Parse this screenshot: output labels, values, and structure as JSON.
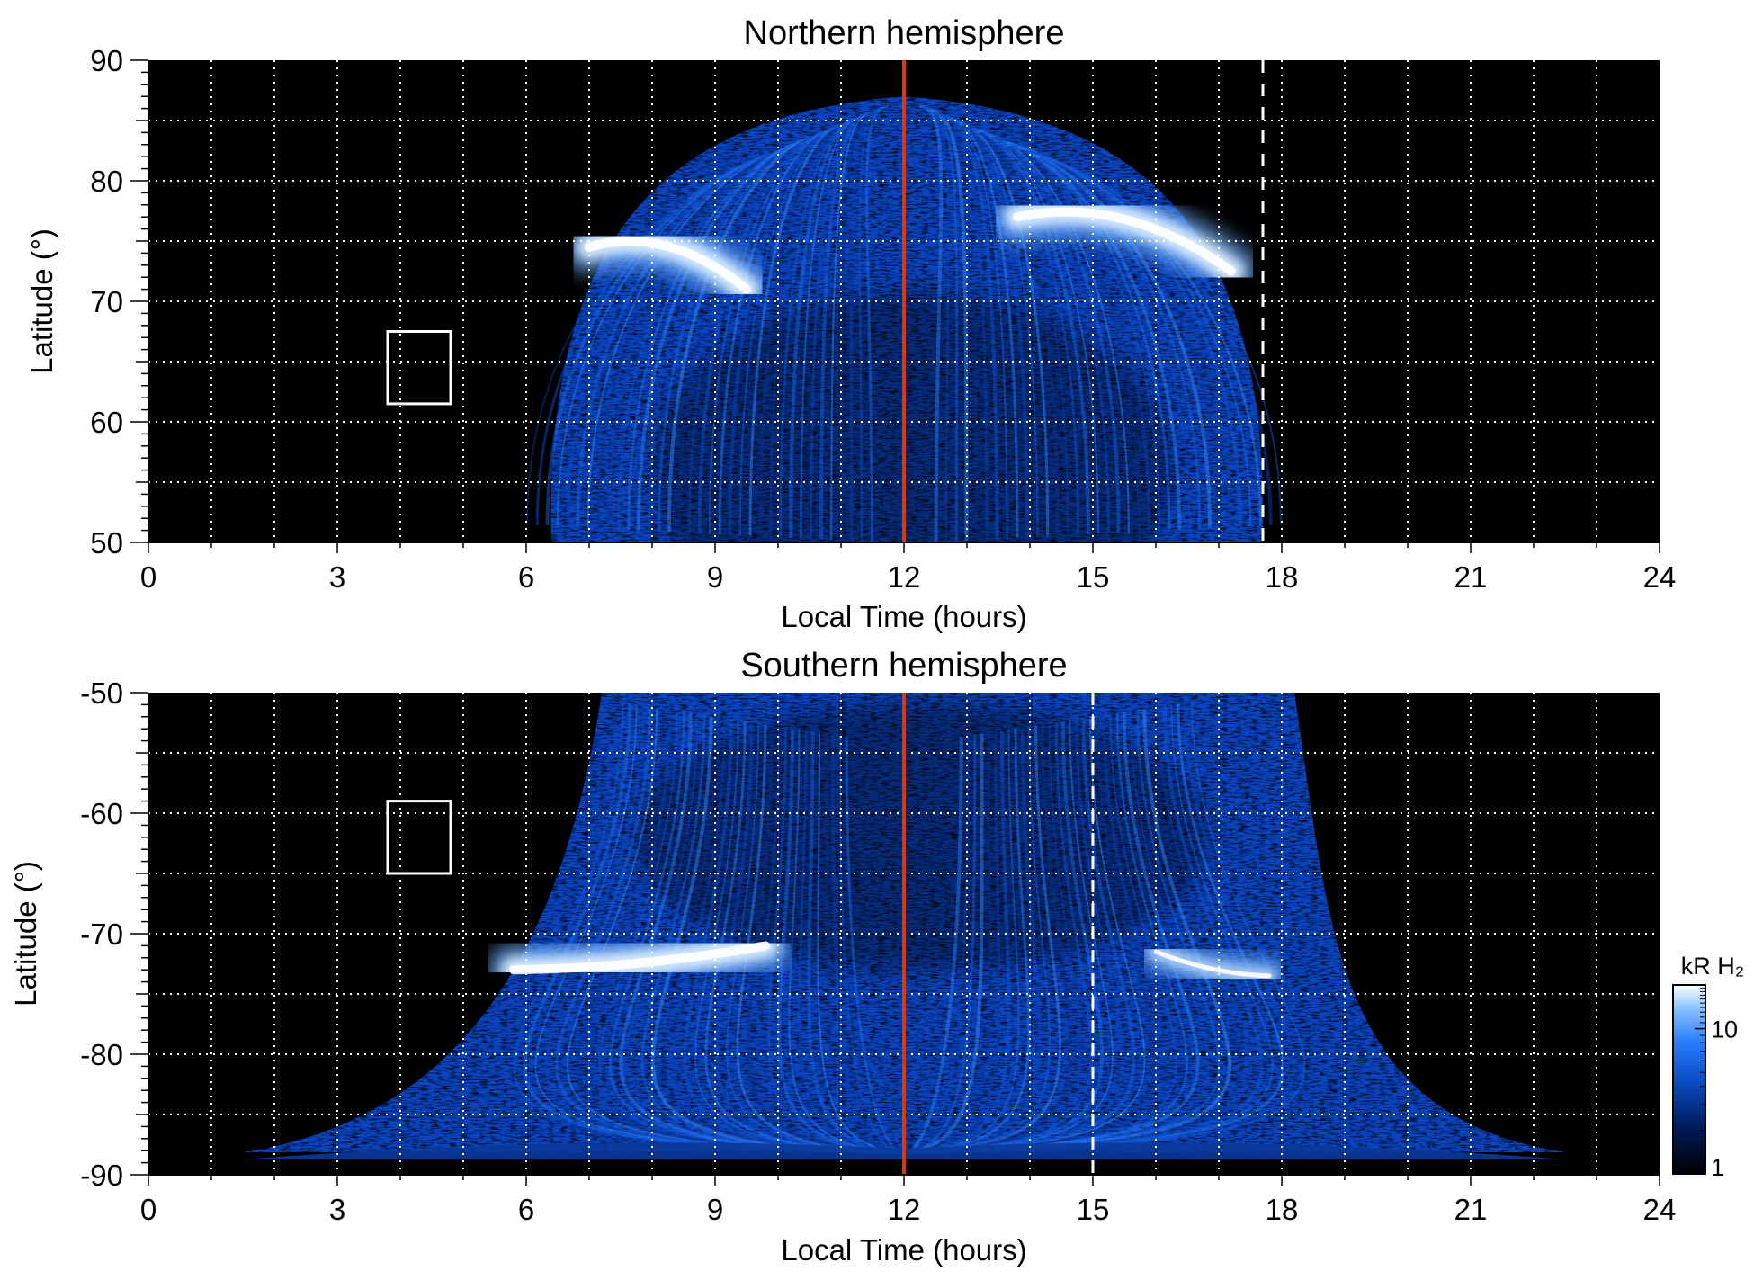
{
  "chart_data": [
    {
      "type": "heatmap",
      "title": "Northern hemisphere",
      "xlabel": "Local Time (hours)",
      "ylabel": "Latitude (°)",
      "xlim": [
        0,
        24
      ],
      "ylim": [
        50,
        90
      ],
      "xticks": [
        "0",
        "3",
        "6",
        "9",
        "12",
        "15",
        "18",
        "21",
        "24"
      ],
      "yticks": [
        "50",
        "60",
        "70",
        "80",
        "90"
      ],
      "grid": true,
      "background": "#000000",
      "emission": {
        "lt_min": 6.4,
        "lt_max": 17.7,
        "center_lt": 12,
        "pole_lat": 87
      },
      "auroral_oval": [
        {
          "lt_start": 7.0,
          "lt_end": 9.5,
          "lat_start": 74.5,
          "lat_end": 71.0,
          "intensity": "bright"
        },
        {
          "lt_start": 13.8,
          "lt_end": 17.2,
          "lat_start": 77.0,
          "lat_end": 72.5,
          "intensity": "bright"
        }
      ],
      "markers": {
        "noon_line_lt": 12,
        "noon_line_color": "#d83a10",
        "dashed_line_lt": 17.7,
        "box": {
          "lt": [
            3.8,
            4.8
          ],
          "lat": [
            61.5,
            67.5
          ]
        }
      }
    },
    {
      "type": "heatmap",
      "title": "Southern hemisphere",
      "xlabel": "Local Time (hours)",
      "ylabel": "Latitude (°)",
      "xlim": [
        0,
        24
      ],
      "ylim": [
        -90,
        -50
      ],
      "xticks": [
        "0",
        "3",
        "6",
        "9",
        "12",
        "15",
        "18",
        "21",
        "24"
      ],
      "yticks": [
        "-50",
        "-60",
        "-70",
        "-80",
        "-90"
      ],
      "grid": true,
      "background": "#000000",
      "emission": {
        "lt_min": 1.5,
        "lt_max": 22.5,
        "center_lt": 12,
        "pole_lat": -90
      },
      "auroral_oval": [
        {
          "lt_start": 5.8,
          "lt_end": 9.8,
          "lat_start": -73.0,
          "lat_end": -71.0,
          "intensity": "bright"
        },
        {
          "lt_start": 16.0,
          "lt_end": 17.8,
          "lat_start": -71.5,
          "lat_end": -73.5,
          "intensity": "medium"
        }
      ],
      "markers": {
        "noon_line_lt": 12,
        "noon_line_color": "#d83a10",
        "dashed_line_lt": 15,
        "box": {
          "lt": [
            3.8,
            4.8
          ],
          "lat": [
            -59,
            -65
          ]
        }
      }
    }
  ],
  "colorbar": {
    "label": "kR H₂",
    "ticks": [
      "10",
      "1"
    ],
    "tick_values": [
      10,
      1
    ],
    "range": [
      1,
      20
    ],
    "scale": "log",
    "colors": [
      "#000000",
      "#001a5c",
      "#0a4fc8",
      "#2a7cff",
      "#8cc4ff",
      "#ffffff"
    ]
  }
}
